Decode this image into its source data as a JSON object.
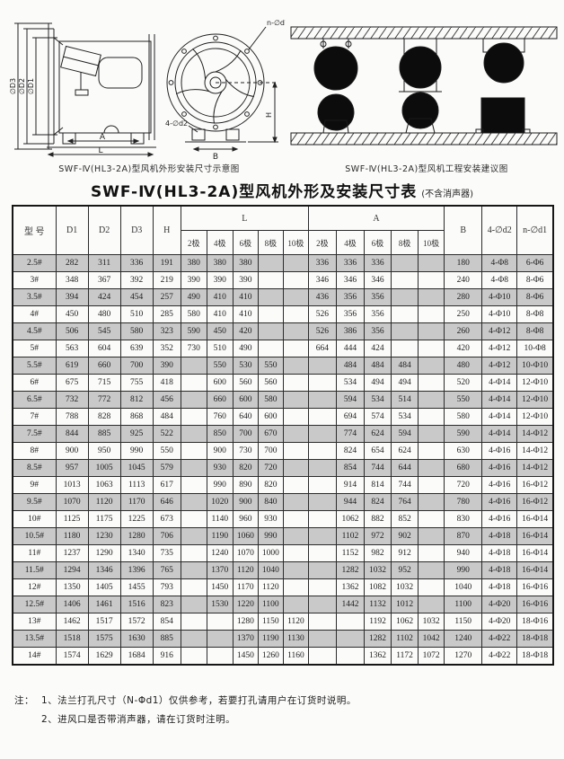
{
  "diagrams": {
    "left_caption": "SWF-Ⅳ(HL3-2A)型风机外形安装尺寸示意图",
    "right_caption": "SWF-Ⅳ(HL3-2A)型风机工程安装建议图",
    "labels": {
      "d3": "∅D3",
      "d2": "∅D2",
      "d1": "∅D1",
      "a_dim": "A",
      "l_dim": "L",
      "n_d1": "n-∅d1",
      "four_d2": "4-∅d2",
      "b_dim": "B",
      "h_dim": "H"
    }
  },
  "title": {
    "main": "SWF-Ⅳ(HL3-2A)型风机外形及安装尺寸表",
    "suffix": "(不含消声器)"
  },
  "table": {
    "headers": {
      "model": "型 号",
      "d1": "D1",
      "d2": "D2",
      "d3": "D3",
      "h": "H",
      "l": "L",
      "a": "A",
      "b": "B",
      "d2_hole": "4-∅d2",
      "d1_hole": "n-∅d1"
    },
    "pole_cols": [
      "2极",
      "4极",
      "6极",
      "8极",
      "10极"
    ],
    "rows": [
      [
        "2.5#",
        "282",
        "311",
        "336",
        "191",
        "380",
        "380",
        "380",
        "",
        "",
        "336",
        "336",
        "336",
        "",
        "",
        "180",
        "4-Φ8",
        "6-Φ6"
      ],
      [
        "3#",
        "348",
        "367",
        "392",
        "219",
        "390",
        "390",
        "390",
        "",
        "",
        "346",
        "346",
        "346",
        "",
        "",
        "240",
        "4-Φ8",
        "8-Φ6"
      ],
      [
        "3.5#",
        "394",
        "424",
        "454",
        "257",
        "490",
        "410",
        "410",
        "",
        "",
        "436",
        "356",
        "356",
        "",
        "",
        "280",
        "4-Φ10",
        "8-Φ6"
      ],
      [
        "4#",
        "450",
        "480",
        "510",
        "285",
        "580",
        "410",
        "410",
        "",
        "",
        "526",
        "356",
        "356",
        "",
        "",
        "250",
        "4-Φ10",
        "8-Φ8"
      ],
      [
        "4.5#",
        "506",
        "545",
        "580",
        "323",
        "590",
        "450",
        "420",
        "",
        "",
        "526",
        "386",
        "356",
        "",
        "",
        "260",
        "4-Φ12",
        "8-Φ8"
      ],
      [
        "5#",
        "563",
        "604",
        "639",
        "352",
        "730",
        "510",
        "490",
        "",
        "",
        "664",
        "444",
        "424",
        "",
        "",
        "420",
        "4-Φ12",
        "10-Φ8"
      ],
      [
        "5.5#",
        "619",
        "660",
        "700",
        "390",
        "",
        "550",
        "530",
        "550",
        "",
        "",
        "484",
        "484",
        "484",
        "",
        "480",
        "4-Φ12",
        "10-Φ10"
      ],
      [
        "6#",
        "675",
        "715",
        "755",
        "418",
        "",
        "600",
        "560",
        "560",
        "",
        "",
        "534",
        "494",
        "494",
        "",
        "520",
        "4-Φ14",
        "12-Φ10"
      ],
      [
        "6.5#",
        "732",
        "772",
        "812",
        "456",
        "",
        "660",
        "600",
        "580",
        "",
        "",
        "594",
        "534",
        "514",
        "",
        "550",
        "4-Φ14",
        "12-Φ10"
      ],
      [
        "7#",
        "788",
        "828",
        "868",
        "484",
        "",
        "760",
        "640",
        "600",
        "",
        "",
        "694",
        "574",
        "534",
        "",
        "580",
        "4-Φ14",
        "12-Φ10"
      ],
      [
        "7.5#",
        "844",
        "885",
        "925",
        "522",
        "",
        "850",
        "700",
        "670",
        "",
        "",
        "774",
        "624",
        "594",
        "",
        "590",
        "4-Φ14",
        "14-Φ12"
      ],
      [
        "8#",
        "900",
        "950",
        "990",
        "550",
        "",
        "900",
        "730",
        "700",
        "",
        "",
        "824",
        "654",
        "624",
        "",
        "630",
        "4-Φ16",
        "14-Φ12"
      ],
      [
        "8.5#",
        "957",
        "1005",
        "1045",
        "579",
        "",
        "930",
        "820",
        "720",
        "",
        "",
        "854",
        "744",
        "644",
        "",
        "680",
        "4-Φ16",
        "14-Φ12"
      ],
      [
        "9#",
        "1013",
        "1063",
        "1113",
        "617",
        "",
        "990",
        "890",
        "820",
        "",
        "",
        "914",
        "814",
        "744",
        "",
        "720",
        "4-Φ16",
        "16-Φ12"
      ],
      [
        "9.5#",
        "1070",
        "1120",
        "1170",
        "646",
        "",
        "1020",
        "900",
        "840",
        "",
        "",
        "944",
        "824",
        "764",
        "",
        "780",
        "4-Φ16",
        "16-Φ12"
      ],
      [
        "10#",
        "1125",
        "1175",
        "1225",
        "673",
        "",
        "1140",
        "960",
        "930",
        "",
        "",
        "1062",
        "882",
        "852",
        "",
        "830",
        "4-Φ16",
        "16-Φ14"
      ],
      [
        "10.5#",
        "1180",
        "1230",
        "1280",
        "706",
        "",
        "1190",
        "1060",
        "990",
        "",
        "",
        "1102",
        "972",
        "902",
        "",
        "870",
        "4-Φ18",
        "16-Φ14"
      ],
      [
        "11#",
        "1237",
        "1290",
        "1340",
        "735",
        "",
        "1240",
        "1070",
        "1000",
        "",
        "",
        "1152",
        "982",
        "912",
        "",
        "940",
        "4-Φ18",
        "16-Φ14"
      ],
      [
        "11.5#",
        "1294",
        "1346",
        "1396",
        "765",
        "",
        "1370",
        "1120",
        "1040",
        "",
        "",
        "1282",
        "1032",
        "952",
        "",
        "990",
        "4-Φ18",
        "16-Φ14"
      ],
      [
        "12#",
        "1350",
        "1405",
        "1455",
        "793",
        "",
        "1450",
        "1170",
        "1120",
        "",
        "",
        "1362",
        "1082",
        "1032",
        "",
        "1040",
        "4-Φ18",
        "16-Φ16"
      ],
      [
        "12.5#",
        "1406",
        "1461",
        "1516",
        "823",
        "",
        "1530",
        "1220",
        "1100",
        "",
        "",
        "1442",
        "1132",
        "1012",
        "",
        "1100",
        "4-Φ20",
        "16-Φ16"
      ],
      [
        "13#",
        "1462",
        "1517",
        "1572",
        "854",
        "",
        "",
        "1280",
        "1150",
        "1120",
        "",
        "",
        "1192",
        "1062",
        "1032",
        "1150",
        "4-Φ20",
        "18-Φ16"
      ],
      [
        "13.5#",
        "1518",
        "1575",
        "1630",
        "885",
        "",
        "",
        "1370",
        "1190",
        "1130",
        "",
        "",
        "1282",
        "1102",
        "1042",
        "1240",
        "4-Φ22",
        "18-Φ18"
      ],
      [
        "14#",
        "1574",
        "1629",
        "1684",
        "916",
        "",
        "",
        "1450",
        "1260",
        "1160",
        "",
        "",
        "1362",
        "1172",
        "1072",
        "1270",
        "4-Φ22",
        "18-Φ18"
      ]
    ]
  },
  "notes": {
    "prefix": "注：",
    "line1": "1、法兰打孔尺寸（N-Φd1）仅供参考，若要打孔请用户在订货时说明。",
    "line2": "2、进风口是否带消声器，请在订货时注明。"
  }
}
